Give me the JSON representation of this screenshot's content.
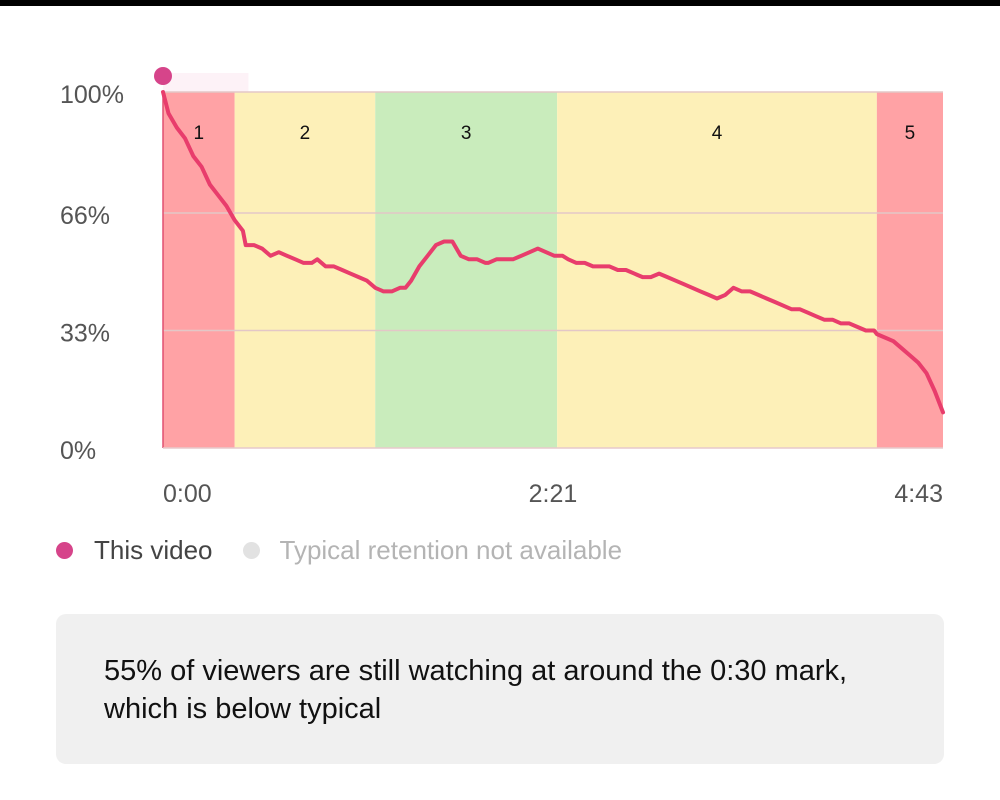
{
  "chart_data": {
    "type": "line",
    "title": "",
    "xlabel": "",
    "ylabel": "",
    "y_ticks": [
      "100%",
      "66%",
      "33%",
      "0%"
    ],
    "x_ticks": [
      "0:00",
      "2:21",
      "4:43"
    ],
    "ylim": [
      0,
      100
    ],
    "x_unit": "seconds",
    "xlim": [
      0,
      283
    ],
    "grid": true,
    "series": [
      {
        "name": "This video",
        "color": "#e83d6c",
        "x": [
          0,
          2,
          5,
          8,
          11,
          14,
          17,
          20,
          23,
          26,
          29,
          30,
          33,
          36,
          39,
          42,
          45,
          48,
          51,
          54,
          56,
          59,
          62,
          65,
          68,
          71,
          74,
          77,
          80,
          83,
          86,
          88,
          90,
          93,
          96,
          99,
          102,
          105,
          108,
          111,
          114,
          117,
          118,
          121,
          124,
          127,
          130,
          133,
          136,
          139,
          142,
          145,
          147,
          150,
          153,
          156,
          159,
          162,
          165,
          168,
          171,
          174,
          177,
          180,
          183,
          186,
          189,
          192,
          195,
          198,
          201,
          204,
          207,
          210,
          213,
          216,
          219,
          222,
          225,
          228,
          231,
          234,
          237,
          240,
          243,
          246,
          249,
          252,
          255,
          258,
          259,
          262,
          265,
          268,
          271,
          274,
          277,
          280,
          283
        ],
        "values": [
          100,
          94,
          90,
          87,
          82,
          79,
          74,
          71,
          68,
          64,
          61,
          57,
          57,
          56,
          54,
          55,
          54,
          53,
          52,
          52,
          53,
          51,
          51,
          50,
          49,
          48,
          47,
          45,
          44,
          44,
          45,
          45,
          47,
          51,
          54,
          57,
          58,
          58,
          54,
          53,
          53,
          52,
          52,
          53,
          53,
          53,
          54,
          55,
          56,
          55,
          54,
          54,
          53,
          52,
          52,
          51,
          51,
          51,
          50,
          50,
          49,
          48,
          48,
          49,
          48,
          47,
          46,
          45,
          44,
          43,
          42,
          43,
          45,
          44,
          44,
          43,
          42,
          41,
          40,
          39,
          39,
          38,
          37,
          36,
          36,
          35,
          35,
          34,
          33,
          33,
          32,
          31,
          30,
          28,
          26,
          24,
          21,
          16,
          10
        ]
      },
      {
        "name": "Typical retention not available",
        "color": "#e2e2e2",
        "x": [],
        "values": []
      }
    ],
    "segments": [
      {
        "label": "1",
        "x_start": 0,
        "x_end": 26,
        "color": "#ffa2a5"
      },
      {
        "label": "2",
        "x_start": 26,
        "x_end": 77,
        "color": "#fdf0b8"
      },
      {
        "label": "3",
        "x_start": 77,
        "x_end": 143,
        "color": "#c9ecbc"
      },
      {
        "label": "4",
        "x_start": 143,
        "x_end": 259,
        "color": "#fdf0b8"
      },
      {
        "label": "5",
        "x_start": 259,
        "x_end": 283,
        "color": "#ffa2a5"
      }
    ]
  },
  "legend": {
    "this_video": "This video",
    "typical": "Typical retention not available"
  },
  "insight": {
    "text": "55% of viewers are still watching at around the 0:30 mark, which is below typical"
  },
  "colors": {
    "line": "#e83d6c",
    "start_marker": "#d6448a",
    "axis": "#e05070",
    "gridline": "#e3c7c7"
  }
}
